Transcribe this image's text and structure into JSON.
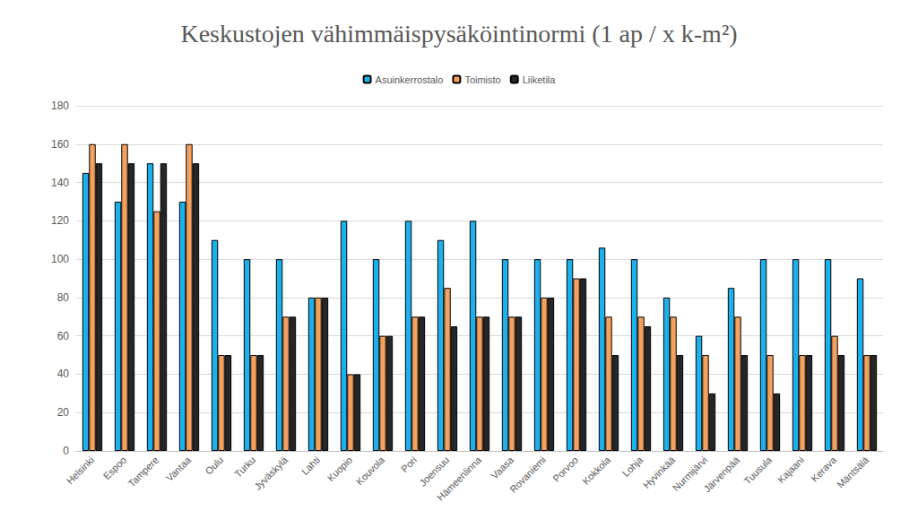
{
  "chart_data": {
    "type": "bar",
    "title": "Keskustojen vähimmäispysäköintinormi (1 ap / x k-m²)",
    "categories": [
      "Helsinki",
      "Espoo",
      "Tampere",
      "Vantaa",
      "Oulu",
      "Turku",
      "Jyväskylä",
      "Lahti",
      "Kuopio",
      "Kouvola",
      "Pori",
      "Joensuu",
      "Hämeenlinna",
      "Vaasa",
      "Rovaniemi",
      "Porvoo",
      "Kokkola",
      "Lohja",
      "Hyvinkää",
      "Nurmijärvi",
      "Järvenpää",
      "Tuusula",
      "Kajaani",
      "Kerava",
      "Mäntsälä"
    ],
    "series": [
      {
        "name": "Asuinkerrostalo",
        "color": "#1CB0EC",
        "values": [
          145,
          130,
          150,
          130,
          110,
          100,
          100,
          80,
          120,
          100,
          120,
          110,
          120,
          100,
          100,
          100,
          106,
          100,
          80,
          60,
          85,
          100,
          100,
          100,
          90
        ]
      },
      {
        "name": "Toimisto",
        "color": "#F4A15D",
        "values": [
          160,
          160,
          125,
          160,
          50,
          50,
          70,
          80,
          40,
          60,
          70,
          85,
          70,
          70,
          80,
          90,
          70,
          70,
          70,
          50,
          70,
          50,
          50,
          60,
          50
        ]
      },
      {
        "name": "Liiketila",
        "color": "#262626",
        "values": [
          150,
          150,
          150,
          150,
          50,
          50,
          70,
          80,
          40,
          60,
          70,
          65,
          70,
          70,
          80,
          90,
          50,
          65,
          50,
          30,
          50,
          30,
          50,
          50,
          50
        ]
      }
    ],
    "ylim": [
      0,
      180
    ],
    "yticks": [
      0,
      20,
      40,
      60,
      80,
      100,
      120,
      140,
      160,
      180
    ],
    "grid": true,
    "legend": "top"
  }
}
